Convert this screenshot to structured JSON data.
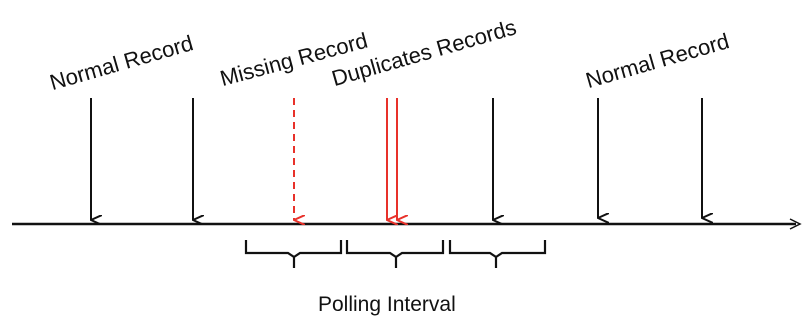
{
  "labels": {
    "normal_record_left": "Normal Record",
    "missing_record": "Missing Record",
    "duplicates_records": "Duplicates Records",
    "normal_record_right": "Normal Record",
    "polling_interval": "Polling Interval"
  },
  "colors": {
    "normal": "#111111",
    "anomaly": "#e8312a"
  }
}
